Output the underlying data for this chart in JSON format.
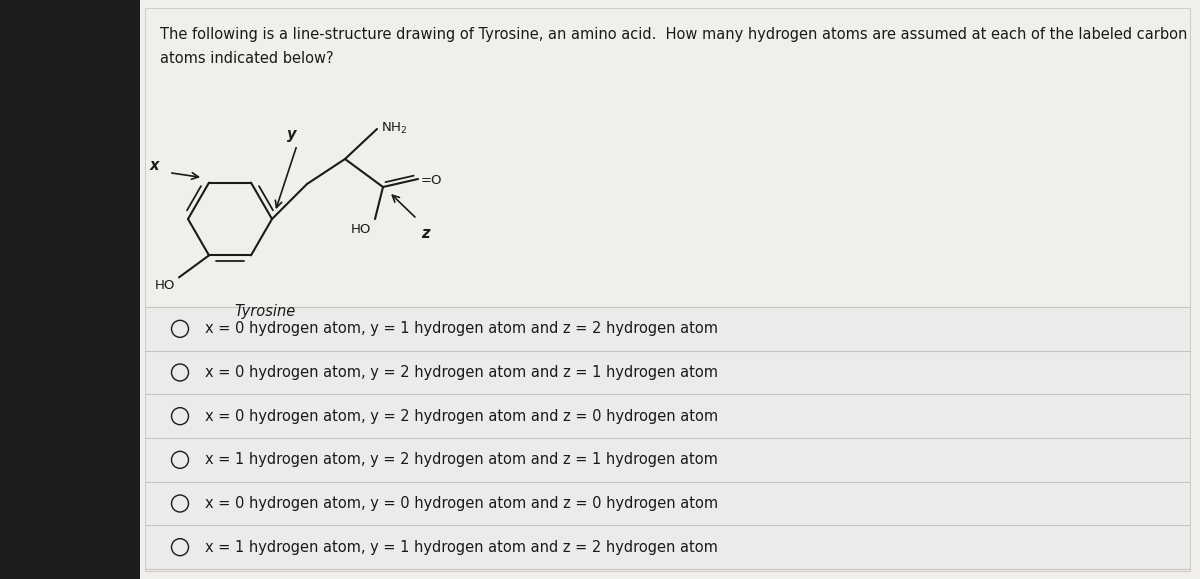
{
  "question_text_line1": "The following is a line-structure drawing of Tyrosine, an amino acid.  How many hydrogen atoms are assumed at each of the labeled carbon",
  "question_text_line2": "atoms indicated below?",
  "molecule_label": "Tyrosine",
  "options": [
    "x = 0 hydrogen atom, y = 1 hydrogen atom and z = 2 hydrogen atom",
    "x = 0 hydrogen atom, y = 2 hydrogen atom and z = 1 hydrogen atom",
    "x = 0 hydrogen atom, y = 2 hydrogen atom and z = 0 hydrogen atom",
    "x = 1 hydrogen atom, y = 2 hydrogen atom and z = 1 hydrogen atom",
    "x = 0 hydrogen atom, y = 0 hydrogen atom and z = 0 hydrogen atom",
    "x = 1 hydrogen atom, y = 1 hydrogen atom and z = 2 hydrogen atom"
  ],
  "bg_color": "#1a1a1a",
  "panel_color": "#e8e6e3",
  "white_color": "#f0efec",
  "text_color": "#1a1a1a",
  "bond_color": "#1a1a1a",
  "separator_color": "#c8c4bc",
  "font_size_question": 10.5,
  "font_size_option": 10.5,
  "font_size_label": 10.0,
  "font_size_mol_text": 9.5,
  "font_size_xyz": 10.5
}
